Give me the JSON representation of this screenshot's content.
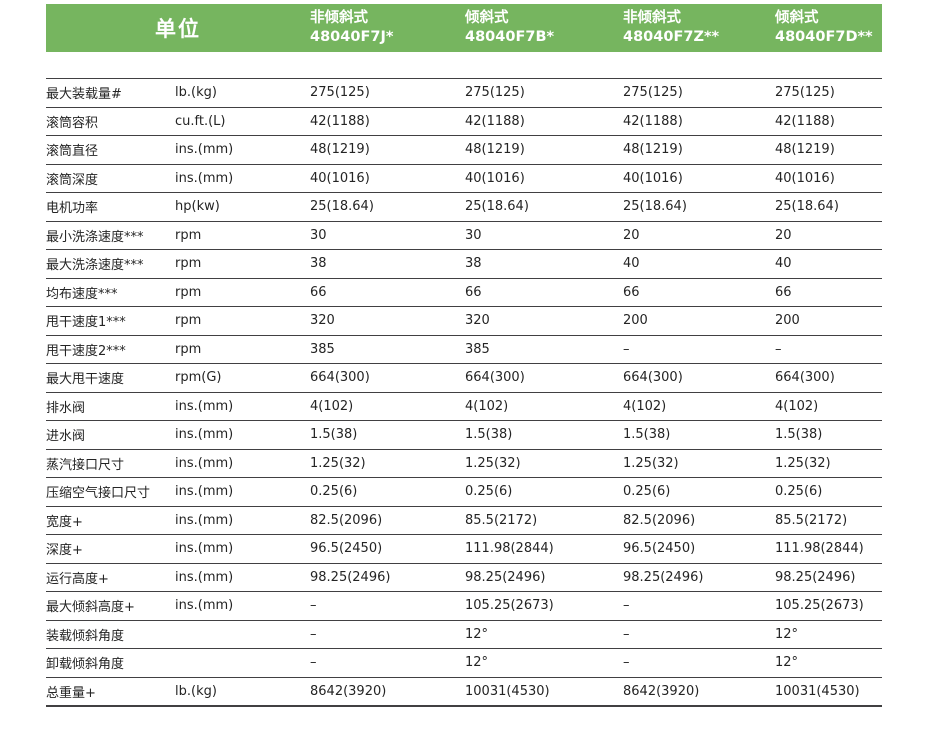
{
  "colors": {
    "header_green": "#76B55F",
    "header_text": "#ffffff",
    "row_line": "#414042",
    "body_text": "#242424"
  },
  "header": {
    "unit_label": "单位",
    "models": [
      {
        "type": "非倾斜式",
        "model": "48040F7J*"
      },
      {
        "type": "倾斜式",
        "model": "48040F7B*"
      },
      {
        "type": "非倾斜式",
        "model": "48040F7Z**"
      },
      {
        "type": "倾斜式",
        "model": "48040F7D**"
      }
    ]
  },
  "table": {
    "rows": [
      {
        "label": "最大装载量#",
        "unit": "lb.(kg)",
        "values": [
          "275(125)",
          "275(125)",
          "275(125)",
          "275(125)"
        ]
      },
      {
        "label": "滚筒容积",
        "unit": "cu.ft.(L)",
        "values": [
          "42(1188)",
          "42(1188)",
          "42(1188)",
          "42(1188)"
        ]
      },
      {
        "label": "滚筒直径",
        "unit": "ins.(mm)",
        "values": [
          "48(1219)",
          "48(1219)",
          "48(1219)",
          "48(1219)"
        ]
      },
      {
        "label": "滚筒深度",
        "unit": "ins.(mm)",
        "values": [
          "40(1016)",
          "40(1016)",
          "40(1016)",
          "40(1016)"
        ]
      },
      {
        "label": "电机功率",
        "unit": "hp(kw)",
        "values": [
          "25(18.64)",
          "25(18.64)",
          "25(18.64)",
          "25(18.64)"
        ]
      },
      {
        "label": "最小洗涤速度***",
        "unit": "rpm",
        "values": [
          "30",
          "30",
          "20",
          "20"
        ]
      },
      {
        "label": "最大洗涤速度***",
        "unit": "rpm",
        "values": [
          "38",
          "38",
          "40",
          "40"
        ]
      },
      {
        "label": "均布速度***",
        "unit": "rpm",
        "values": [
          "66",
          "66",
          "66",
          "66"
        ]
      },
      {
        "label": "甩干速度1***",
        "unit": "rpm",
        "values": [
          "320",
          "320",
          "200",
          "200"
        ]
      },
      {
        "label": "甩干速度2***",
        "unit": "rpm",
        "values": [
          "385",
          "385",
          "–",
          "–"
        ]
      },
      {
        "label": "最大甩干速度",
        "unit": "rpm(G)",
        "values": [
          "664(300)",
          "664(300)",
          "664(300)",
          "664(300)"
        ]
      },
      {
        "label": "排水阀",
        "unit": "ins.(mm)",
        "values": [
          "4(102)",
          "4(102)",
          "4(102)",
          "4(102)"
        ]
      },
      {
        "label": "进水阀",
        "unit": "ins.(mm)",
        "values": [
          "1.5(38)",
          "1.5(38)",
          "1.5(38)",
          "1.5(38)"
        ]
      },
      {
        "label": "蒸汽接口尺寸",
        "unit": "ins.(mm)",
        "values": [
          "1.25(32)",
          "1.25(32)",
          "1.25(32)",
          "1.25(32)"
        ]
      },
      {
        "label": "压缩空气接口尺寸",
        "unit": "ins.(mm)",
        "values": [
          "0.25(6)",
          "0.25(6)",
          "0.25(6)",
          "0.25(6)"
        ]
      },
      {
        "label": "宽度+",
        "unit": "ins.(mm)",
        "values": [
          "82.5(2096)",
          "85.5(2172)",
          "82.5(2096)",
          "85.5(2172)"
        ]
      },
      {
        "label": "深度+",
        "unit": "ins.(mm)",
        "values": [
          "96.5(2450)",
          "111.98(2844)",
          "96.5(2450)",
          "111.98(2844)"
        ]
      },
      {
        "label": "运行高度+",
        "unit": "ins.(mm)",
        "values": [
          "98.25(2496)",
          "98.25(2496)",
          "98.25(2496)",
          "98.25(2496)"
        ]
      },
      {
        "label": "最大倾斜高度+",
        "unit": "ins.(mm)",
        "values": [
          "–",
          "105.25(2673)",
          "–",
          "105.25(2673)"
        ]
      },
      {
        "label": "装载倾斜角度",
        "unit": "",
        "values": [
          "–",
          "12°",
          "–",
          "12°"
        ]
      },
      {
        "label": "卸载倾斜角度",
        "unit": "",
        "values": [
          "–",
          "12°",
          "–",
          "12°"
        ]
      },
      {
        "label": "总重量+",
        "unit": "lb.(kg)",
        "values": [
          "8642(3920)",
          "10031(4530)",
          "8642(3920)",
          "10031(4530)"
        ]
      }
    ]
  }
}
